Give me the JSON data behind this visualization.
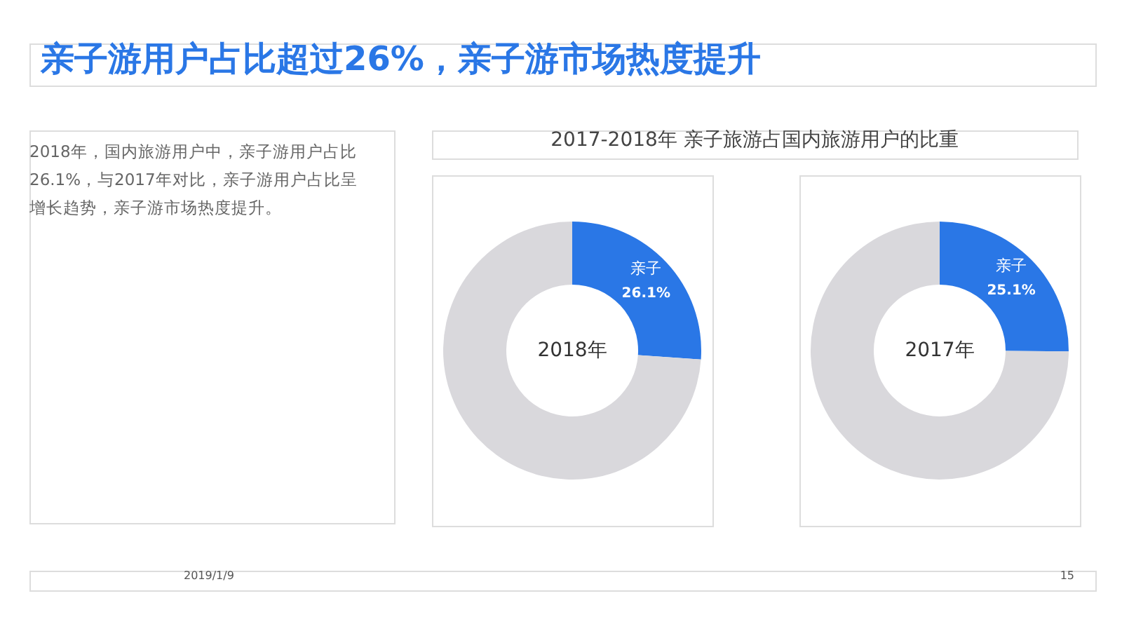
{
  "chart_data": [
    {
      "type": "donut",
      "title": "亲子游用户占比超过26%，亲子游市场热度提升",
      "subtitle": "2017-2018年 亲子旅游占国内旅游用户的比重",
      "categories": [
        "亲子",
        null
      ],
      "values": [
        26.1,
        73.9
      ],
      "colors": [
        "#2a77e6",
        "#d9d8dc"
      ],
      "value_labels": [
        "26.1%",
        null
      ],
      "legend": false,
      "annotations": [
        "2018年",
        "2018年，国内旅游用户中，亲子游用户占比26.1%，与2017年对比，亲子游用户占比呈增长趋势，亲子游市场热度提升。",
        "2019/1/9",
        "15"
      ]
    },
    {
      "type": "donut",
      "categories": [
        "亲子",
        null
      ],
      "values": [
        25.1,
        74.9
      ],
      "colors": [
        "#2a77e6",
        "#d9d8dc"
      ],
      "value_labels": [
        "25.1%",
        null
      ],
      "legend": false,
      "annotations": [
        "2017年"
      ]
    }
  ]
}
